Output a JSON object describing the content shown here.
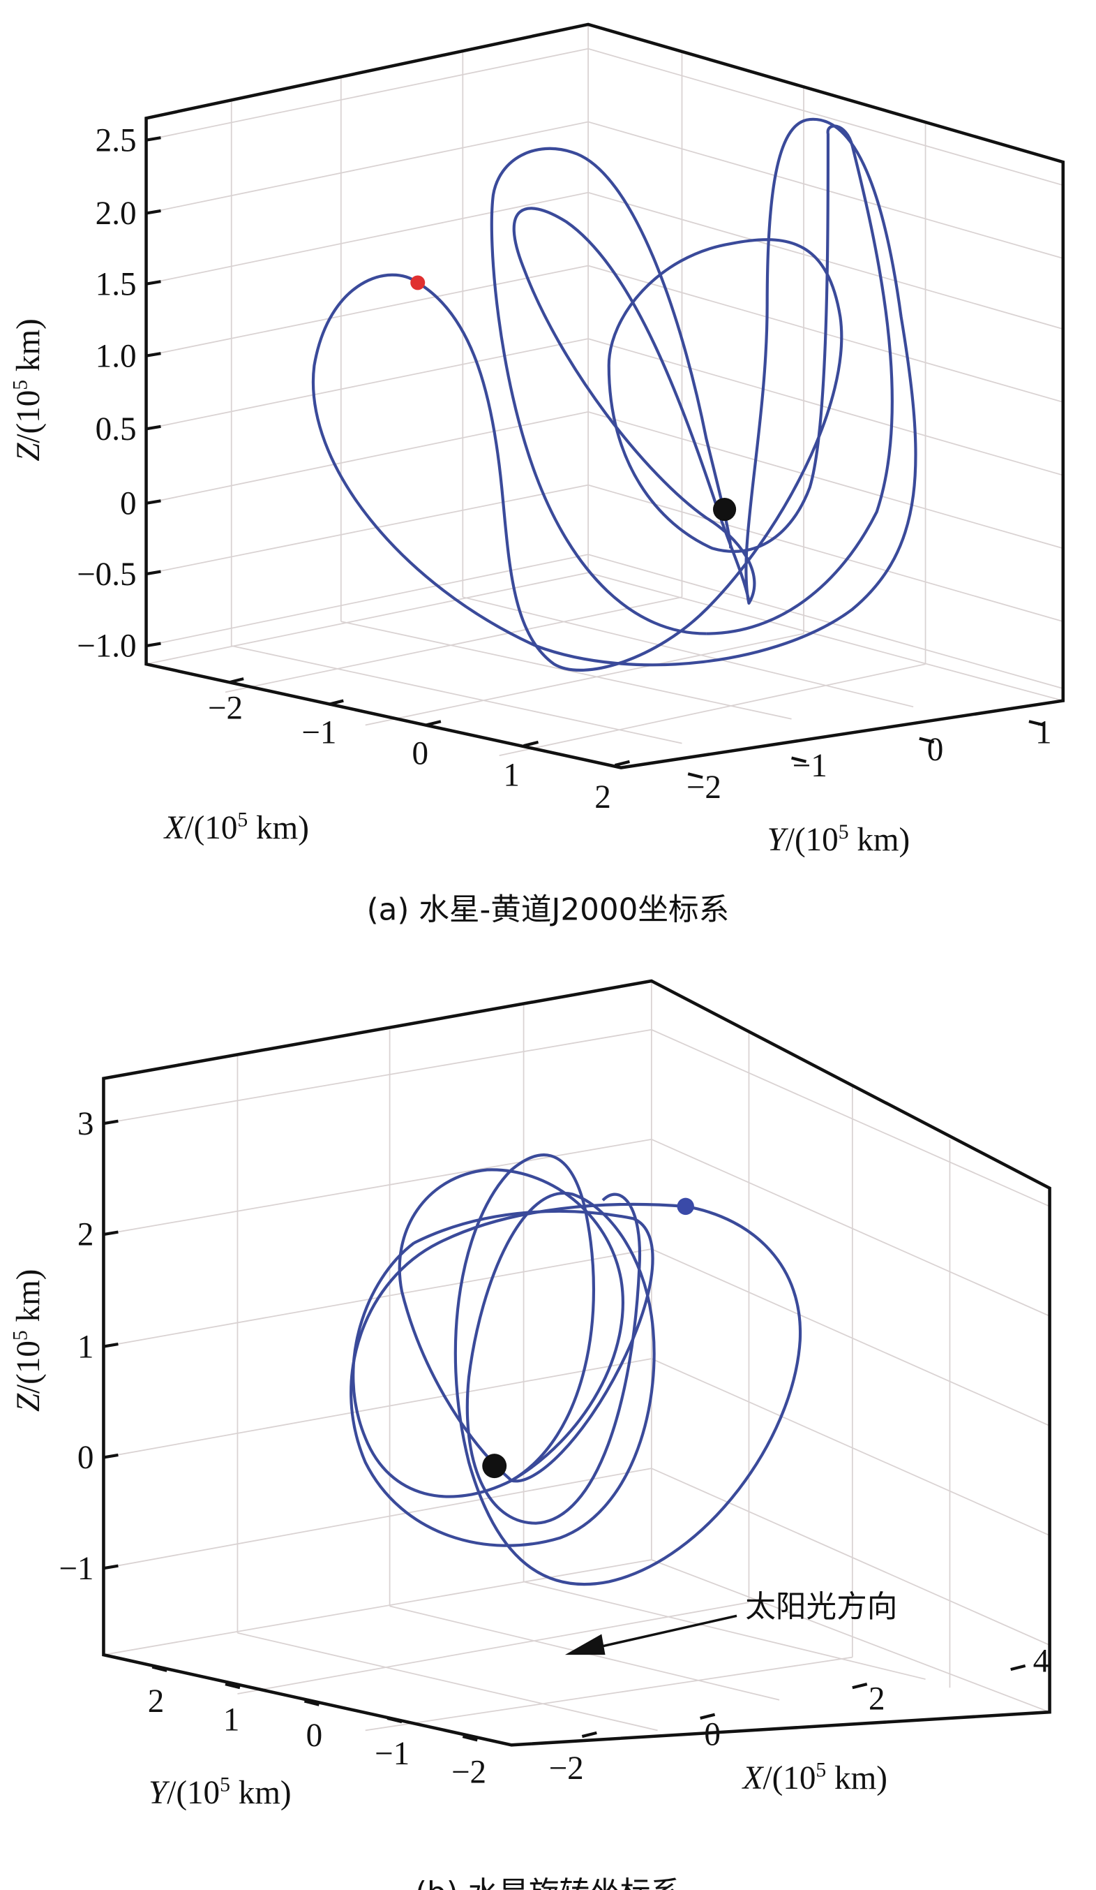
{
  "chart_data": [
    {
      "type": "line",
      "subtype": "3d-trajectory",
      "caption": "(a) 水星-黄道J2000坐标系",
      "xlabel": {
        "var": "X",
        "pre": "/(10",
        "sup": "5",
        "post": " km)"
      },
      "ylabel": {
        "var": "Y",
        "pre": "/(10",
        "sup": "5",
        "post": " km)"
      },
      "zlabel": {
        "var": "Z",
        "pre": "/(10",
        "sup": "5",
        "post": " km)"
      },
      "x_ticks": [
        "−2",
        "−1",
        "0",
        "1",
        "2"
      ],
      "y_ticks": [
        "−2",
        "−1",
        "0",
        "1"
      ],
      "z_ticks": [
        "2.5",
        "2.0",
        "1.5",
        "1.0",
        "0.5",
        "0",
        "−0.5",
        "−1.0"
      ],
      "xlim": [
        -2.5,
        2
      ],
      "ylim": [
        -2.5,
        1.2
      ],
      "zlim": [
        -1.1,
        2.7
      ],
      "grid": true,
      "series_color": "#3a4a9a",
      "markers": [
        {
          "name": "start",
          "color": "#e03030"
        },
        {
          "name": "Mercury",
          "color": "#111111",
          "position": [
            0,
            0,
            0
          ]
        }
      ]
    },
    {
      "type": "line",
      "subtype": "3d-trajectory",
      "caption": "(b) 水星旋转坐标系",
      "xlabel": {
        "var": "X",
        "pre": "/(10",
        "sup": "5",
        "post": " km)"
      },
      "ylabel": {
        "var": "Y",
        "pre": "/(10",
        "sup": "5",
        "post": " km)"
      },
      "zlabel": {
        "var": "Z",
        "pre": "/(10",
        "sup": "5",
        "post": " km)"
      },
      "x_ticks": [
        "−2",
        "0",
        "2",
        "4"
      ],
      "y_ticks": [
        "2",
        "1",
        "0",
        "−1",
        "−2"
      ],
      "z_ticks": [
        "3",
        "2",
        "1",
        "0",
        "−1"
      ],
      "xlim": [
        -2.5,
        4.2
      ],
      "ylim": [
        -2.5,
        2.7
      ],
      "zlim": [
        -1.7,
        3.4
      ],
      "grid": true,
      "series_color": "#3a4a9a",
      "annotation": "太阳光方向",
      "markers": [
        {
          "name": "start",
          "color": "#3a4aa8"
        },
        {
          "name": "Mercury",
          "color": "#111111",
          "position": [
            0,
            0,
            0
          ]
        }
      ]
    }
  ]
}
